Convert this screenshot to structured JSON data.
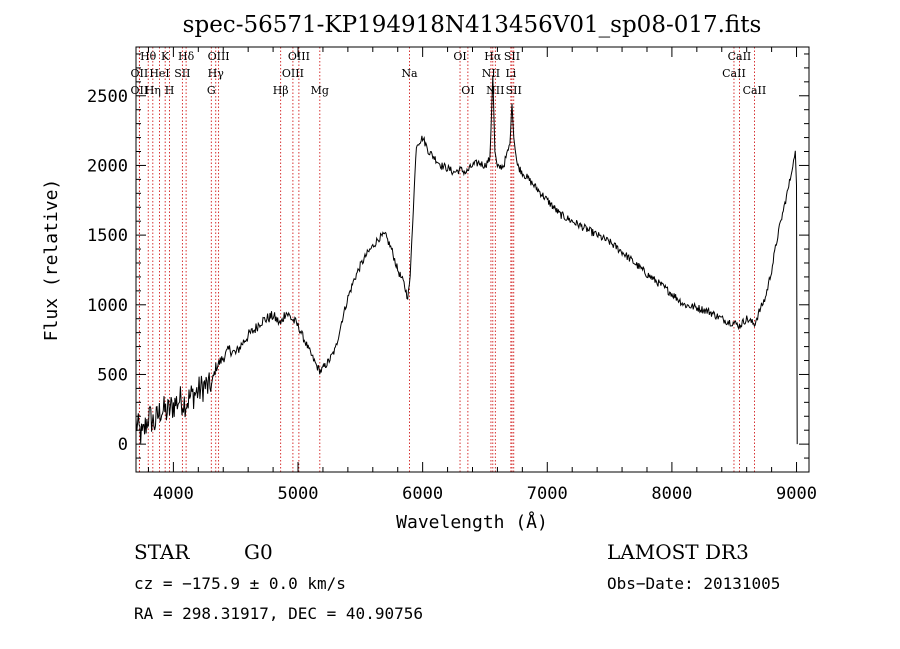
{
  "chart_data": {
    "type": "line",
    "title": "spec-56571-KP194918N413456V01_sp08-017.fits",
    "xlabel": "Wavelength (Å)",
    "ylabel": "Flux (relative)",
    "xlim": [
      3700,
      9100
    ],
    "ylim": [
      -200,
      2850
    ],
    "xticks": [
      4000,
      5000,
      6000,
      7000,
      8000,
      9000
    ],
    "yticks": [
      0,
      500,
      1000,
      1500,
      2000,
      2500
    ],
    "grid": false,
    "series": [
      {
        "name": "",
        "x": [
          3700,
          3750,
          3800,
          3850,
          3900,
          3950,
          4000,
          4050,
          4100,
          4150,
          4200,
          4250,
          4300,
          4340,
          4400,
          4450,
          4500,
          4550,
          4600,
          4650,
          4700,
          4750,
          4800,
          4861,
          4900,
          4950,
          5000,
          5050,
          5100,
          5150,
          5180,
          5250,
          5300,
          5350,
          5400,
          5450,
          5500,
          5550,
          5600,
          5650,
          5700,
          5750,
          5800,
          5850,
          5880,
          5900,
          5920,
          5950,
          6000,
          6050,
          6100,
          6150,
          6200,
          6250,
          6300,
          6350,
          6400,
          6450,
          6500,
          6540,
          6563,
          6580,
          6600,
          6650,
          6700,
          6717,
          6731,
          6760,
          6800,
          6850,
          6900,
          7000,
          7100,
          7200,
          7300,
          7400,
          7500,
          7600,
          7700,
          7800,
          7900,
          8000,
          8100,
          8200,
          8300,
          8400,
          8450,
          8498,
          8542,
          8600,
          8662,
          8700,
          8750,
          8800,
          8850,
          8900,
          8950,
          8970,
          8990,
          9000,
          9005
        ],
        "y": [
          150,
          50,
          200,
          150,
          250,
          230,
          280,
          320,
          300,
          350,
          380,
          420,
          400,
          550,
          620,
          680,
          650,
          720,
          780,
          820,
          880,
          900,
          920,
          860,
          950,
          900,
          850,
          750,
          650,
          560,
          520,
          600,
          680,
          880,
          1050,
          1180,
          1280,
          1360,
          1420,
          1480,
          1500,
          1400,
          1250,
          1150,
          1050,
          1200,
          1600,
          2150,
          2200,
          2100,
          2050,
          2000,
          1980,
          1950,
          1970,
          1950,
          2000,
          2020,
          2000,
          2050,
          2650,
          2100,
          1980,
          2000,
          2150,
          2450,
          2200,
          2000,
          1950,
          1900,
          1850,
          1750,
          1650,
          1600,
          1550,
          1500,
          1450,
          1380,
          1300,
          1220,
          1150,
          1080,
          1000,
          980,
          950,
          900,
          880,
          870,
          850,
          900,
          860,
          950,
          1050,
          1250,
          1500,
          1700,
          1900,
          2000,
          2100,
          1850,
          0
        ]
      }
    ],
    "lines": [
      {
        "name": "OII",
        "wl": 3727,
        "row": 2
      },
      {
        "name": "Hθ",
        "wl": 3798,
        "row": 0
      },
      {
        "name": "OII",
        "wl": 3727,
        "row": 1
      },
      {
        "name": "Hη",
        "wl": 3835,
        "row": 2
      },
      {
        "name": "K",
        "wl": 3934,
        "row": 0
      },
      {
        "name": "HeI",
        "wl": 3889,
        "row": 1
      },
      {
        "name": "H",
        "wl": 3969,
        "row": 2
      },
      {
        "name": "SII",
        "wl": 4072,
        "row": 1
      },
      {
        "name": "Hδ",
        "wl": 4102,
        "row": 0
      },
      {
        "name": "OIII",
        "wl": 4363,
        "row": 0
      },
      {
        "name": "Hγ",
        "wl": 4340,
        "row": 1
      },
      {
        "name": "G",
        "wl": 4304,
        "row": 2
      },
      {
        "name": "Hβ",
        "wl": 4861,
        "row": 2
      },
      {
        "name": "OIII",
        "wl": 5007,
        "row": 0
      },
      {
        "name": "OIII",
        "wl": 4959,
        "row": 1
      },
      {
        "name": "Mg",
        "wl": 5175,
        "row": 2
      },
      {
        "name": "Na",
        "wl": 5894,
        "row": 1
      },
      {
        "name": "OI",
        "wl": 6300,
        "row": 0
      },
      {
        "name": "OI",
        "wl": 6363,
        "row": 2
      },
      {
        "name": "Hα",
        "wl": 6563,
        "row": 0
      },
      {
        "name": "NII",
        "wl": 6548,
        "row": 1
      },
      {
        "name": "NII",
        "wl": 6583,
        "row": 2
      },
      {
        "name": "SII",
        "wl": 6717,
        "row": 0
      },
      {
        "name": "Li",
        "wl": 6708,
        "row": 1
      },
      {
        "name": "SII",
        "wl": 6731,
        "row": 2
      },
      {
        "name": "CaII",
        "wl": 8542,
        "row": 0
      },
      {
        "name": "CaII",
        "wl": 8498,
        "row": 1
      },
      {
        "name": "CaII",
        "wl": 8662,
        "row": 2
      }
    ]
  },
  "footer": {
    "object_class": "STAR",
    "subclass": "G0",
    "survey": "LAMOST DR3",
    "redshift_text": "cz = −175.9 ± 0.0 km/s",
    "obs_date_text": "Obs−Date: 20131005",
    "coords_text": "RA = 298.31917, DEC =  40.90756"
  },
  "colors": {
    "spectrum": "#000000",
    "line_markers": "#cc0000",
    "axes": "#000000"
  }
}
